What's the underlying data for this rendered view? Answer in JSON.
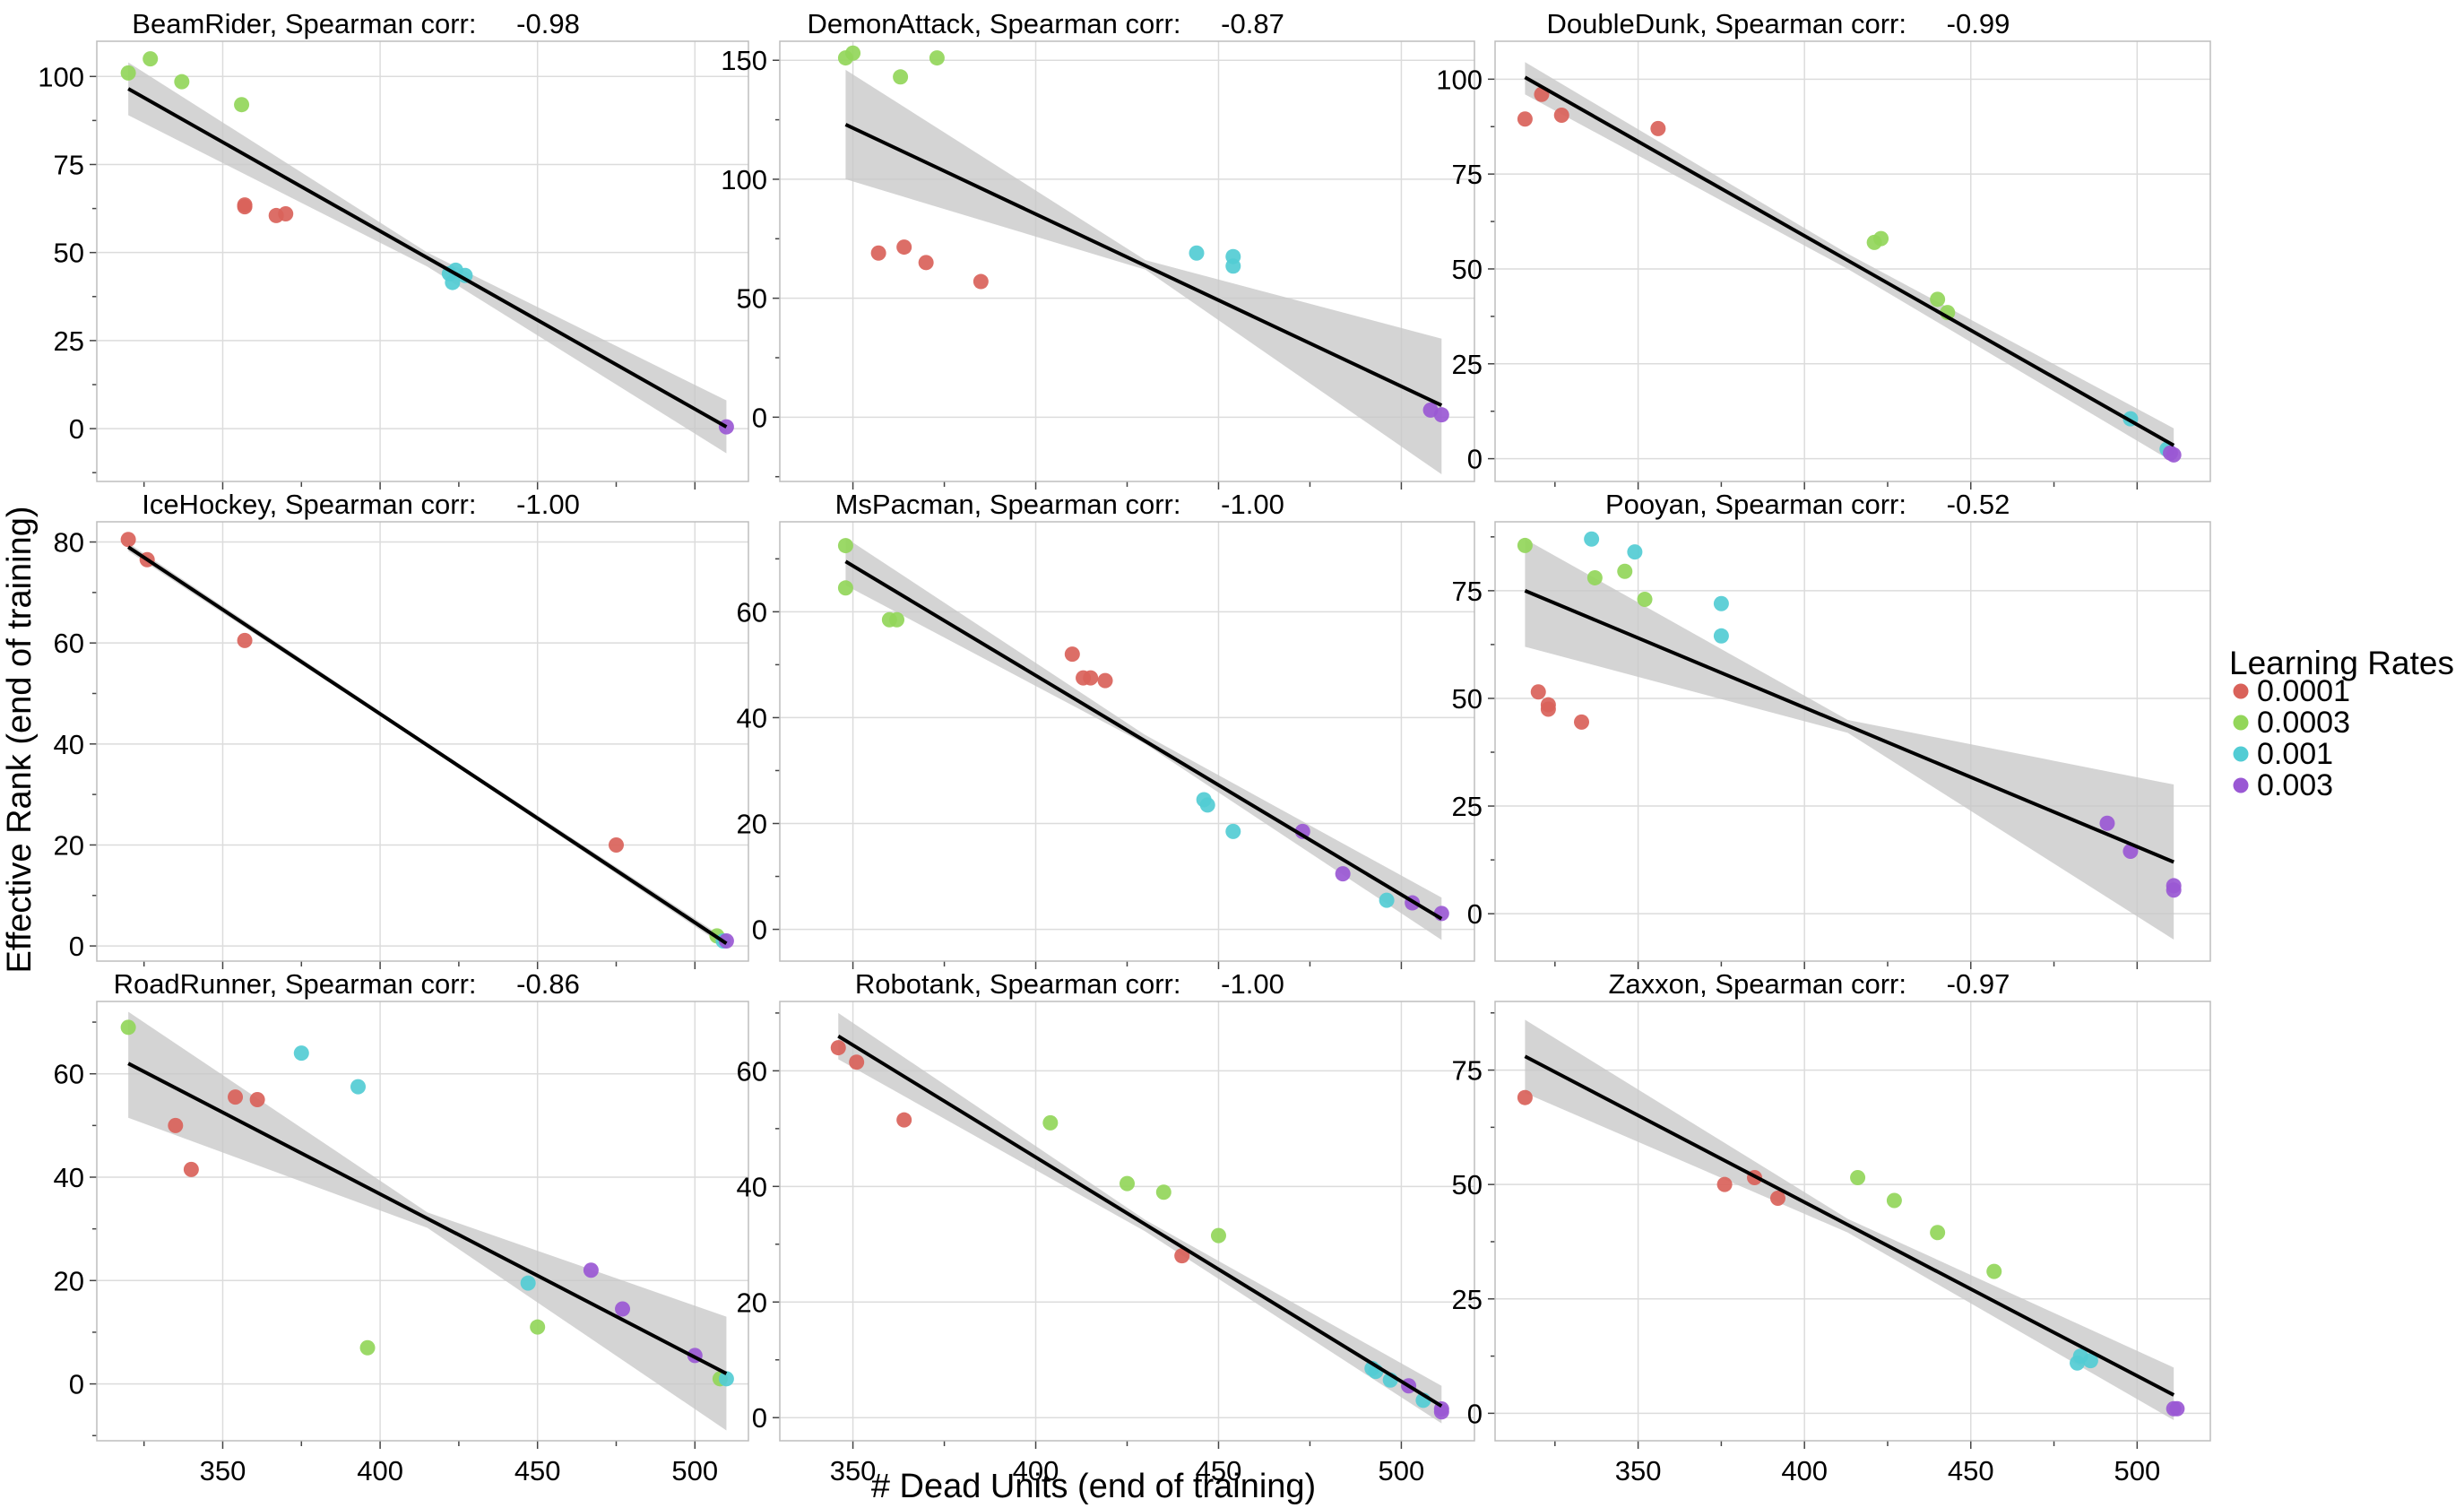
{
  "figure": {
    "ylabel": "Effective Rank (end of training)",
    "xlabel": "# Dead Units (end of training)",
    "legend_title": "Learning Rates"
  },
  "chart_data": {
    "type": "scatter",
    "legend": [
      {
        "label": "0.0001",
        "color": "#d9625a"
      },
      {
        "label": "0.0003",
        "color": "#93d65a"
      },
      {
        "label": "0.001",
        "color": "#52ccd4"
      },
      {
        "label": "0.003",
        "color": "#9a58d4"
      }
    ],
    "shared_x_ticks": [
      "350",
      "400",
      "450",
      "500"
    ],
    "panels": [
      {
        "game": "BeamRider",
        "corr": "-0.98",
        "xlim": [
          310,
          517
        ],
        "ylim": [
          -15,
          110
        ],
        "yticks": [
          "0",
          "25",
          "50",
          "75",
          "100"
        ],
        "show_x_ticks": false,
        "fit": [
          [
            320,
            96.5
          ],
          [
            510,
            0.5
          ]
        ],
        "band": [
          [
            320,
            104,
            89
          ],
          [
            415,
            50,
            46
          ],
          [
            510,
            8,
            -7
          ]
        ],
        "points": [
          {
            "lr": "0.0003",
            "x": 320,
            "y": 101
          },
          {
            "lr": "0.0003",
            "x": 327,
            "y": 105
          },
          {
            "lr": "0.0003",
            "x": 337,
            "y": 98.5
          },
          {
            "lr": "0.0003",
            "x": 356,
            "y": 92
          },
          {
            "lr": "0.0001",
            "x": 357,
            "y": 63.5
          },
          {
            "lr": "0.0001",
            "x": 357,
            "y": 63
          },
          {
            "lr": "0.0001",
            "x": 367,
            "y": 60.5
          },
          {
            "lr": "0.0001",
            "x": 370,
            "y": 61
          },
          {
            "lr": "0.001",
            "x": 422,
            "y": 44
          },
          {
            "lr": "0.001",
            "x": 423,
            "y": 41.5
          },
          {
            "lr": "0.001",
            "x": 424,
            "y": 45
          },
          {
            "lr": "0.001",
            "x": 427,
            "y": 43.5
          },
          {
            "lr": "0.003",
            "x": 510,
            "y": 0.5
          }
        ]
      },
      {
        "game": "DemonAttack",
        "corr": "-0.87",
        "xlim": [
          330,
          520
        ],
        "ylim": [
          -27,
          158
        ],
        "yticks": [
          "0",
          "50",
          "100",
          "150"
        ],
        "show_x_ticks": false,
        "fit": [
          [
            348,
            123
          ],
          [
            511,
            5
          ]
        ],
        "band": [
          [
            348,
            146,
            100
          ],
          [
            430,
            66,
            62
          ],
          [
            511,
            33,
            -24
          ]
        ],
        "points": [
          {
            "lr": "0.0003",
            "x": 348,
            "y": 151
          },
          {
            "lr": "0.0003",
            "x": 350,
            "y": 153
          },
          {
            "lr": "0.0003",
            "x": 363,
            "y": 143
          },
          {
            "lr": "0.0003",
            "x": 373,
            "y": 151
          },
          {
            "lr": "0.0001",
            "x": 357,
            "y": 69
          },
          {
            "lr": "0.0001",
            "x": 364,
            "y": 71.5
          },
          {
            "lr": "0.0001",
            "x": 370,
            "y": 65
          },
          {
            "lr": "0.0001",
            "x": 385,
            "y": 57
          },
          {
            "lr": "0.001",
            "x": 444,
            "y": 69
          },
          {
            "lr": "0.001",
            "x": 454,
            "y": 67.5
          },
          {
            "lr": "0.001",
            "x": 454,
            "y": 63.5
          },
          {
            "lr": "0.003",
            "x": 508,
            "y": 3
          },
          {
            "lr": "0.003",
            "x": 511,
            "y": 1
          }
        ]
      },
      {
        "game": "DoubleDunk",
        "corr": "-0.99",
        "xlim": [
          307,
          522
        ],
        "ylim": [
          -6,
          110
        ],
        "yticks": [
          "0",
          "25",
          "50",
          "75",
          "100"
        ],
        "show_x_ticks": false,
        "fit": [
          [
            316,
            100.5
          ],
          [
            511,
            3.5
          ]
        ],
        "band": [
          [
            316,
            104.5,
            96
          ],
          [
            413,
            54,
            50
          ],
          [
            511,
            8,
            -1
          ]
        ],
        "points": [
          {
            "lr": "0.0001",
            "x": 316,
            "y": 89.5
          },
          {
            "lr": "0.0001",
            "x": 321,
            "y": 96
          },
          {
            "lr": "0.0001",
            "x": 327,
            "y": 90.5
          },
          {
            "lr": "0.0001",
            "x": 356,
            "y": 87
          },
          {
            "lr": "0.0003",
            "x": 421,
            "y": 57
          },
          {
            "lr": "0.0003",
            "x": 423,
            "y": 58
          },
          {
            "lr": "0.0003",
            "x": 440,
            "y": 42
          },
          {
            "lr": "0.0003",
            "x": 443,
            "y": 38.5
          },
          {
            "lr": "0.001",
            "x": 498,
            "y": 10.5
          },
          {
            "lr": "0.001",
            "x": 509,
            "y": 2.5
          },
          {
            "lr": "0.003",
            "x": 510,
            "y": 1.5
          },
          {
            "lr": "0.003",
            "x": 511,
            "y": 1
          }
        ]
      },
      {
        "game": "IceHockey",
        "corr": "-1.00",
        "xlim": [
          310,
          517
        ],
        "ylim": [
          -3,
          84
        ],
        "yticks": [
          "0",
          "20",
          "40",
          "60",
          "80"
        ],
        "show_x_ticks": false,
        "fit": [
          [
            320,
            79
          ],
          [
            510,
            0.5
          ]
        ],
        "band": [
          [
            320,
            79.8,
            78.2
          ],
          [
            415,
            40.2,
            39.4
          ],
          [
            510,
            1.3,
            -0.3
          ]
        ],
        "points": [
          {
            "lr": "0.0001",
            "x": 320,
            "y": 80.5
          },
          {
            "lr": "0.0001",
            "x": 326,
            "y": 76.5
          },
          {
            "lr": "0.0001",
            "x": 357,
            "y": 60.5
          },
          {
            "lr": "0.0001",
            "x": 475,
            "y": 20
          },
          {
            "lr": "0.0003",
            "x": 507,
            "y": 2
          },
          {
            "lr": "0.001",
            "x": 509,
            "y": 1
          },
          {
            "lr": "0.003",
            "x": 510,
            "y": 1
          }
        ]
      },
      {
        "game": "MsPacman",
        "corr": "-1.00",
        "xlim": [
          330,
          520
        ],
        "ylim": [
          -6,
          77
        ],
        "yticks": [
          "0",
          "20",
          "40",
          "60"
        ],
        "show_x_ticks": false,
        "fit": [
          [
            348,
            69.5
          ],
          [
            511,
            2
          ]
        ],
        "band": [
          [
            348,
            74,
            65
          ],
          [
            430,
            36.7,
            35
          ],
          [
            511,
            6,
            -2
          ]
        ],
        "points": [
          {
            "lr": "0.0003",
            "x": 348,
            "y": 72.5
          },
          {
            "lr": "0.0003",
            "x": 348,
            "y": 64.5
          },
          {
            "lr": "0.0003",
            "x": 360,
            "y": 58.5
          },
          {
            "lr": "0.0003",
            "x": 362,
            "y": 58.5
          },
          {
            "lr": "0.0001",
            "x": 410,
            "y": 52
          },
          {
            "lr": "0.0001",
            "x": 413,
            "y": 47.5
          },
          {
            "lr": "0.0001",
            "x": 415,
            "y": 47.5
          },
          {
            "lr": "0.0001",
            "x": 419,
            "y": 47
          },
          {
            "lr": "0.001",
            "x": 446,
            "y": 24.5
          },
          {
            "lr": "0.001",
            "x": 447,
            "y": 23.5
          },
          {
            "lr": "0.001",
            "x": 454,
            "y": 18.5
          },
          {
            "lr": "0.001",
            "x": 496,
            "y": 5.5
          },
          {
            "lr": "0.003",
            "x": 473,
            "y": 18.5
          },
          {
            "lr": "0.003",
            "x": 484,
            "y": 10.5
          },
          {
            "lr": "0.003",
            "x": 503,
            "y": 5
          },
          {
            "lr": "0.003",
            "x": 511,
            "y": 3
          }
        ]
      },
      {
        "game": "Pooyan",
        "corr": "-0.52",
        "xlim": [
          307,
          522
        ],
        "ylim": [
          -11,
          91
        ],
        "yticks": [
          "0",
          "25",
          "50",
          "75"
        ],
        "show_x_ticks": false,
        "fit": [
          [
            316,
            75
          ],
          [
            511,
            12
          ]
        ],
        "band": [
          [
            316,
            87,
            62
          ],
          [
            413,
            45,
            42
          ],
          [
            511,
            30,
            -6
          ]
        ],
        "points": [
          {
            "lr": "0.0003",
            "x": 316,
            "y": 85.5
          },
          {
            "lr": "0.0003",
            "x": 337,
            "y": 78
          },
          {
            "lr": "0.0003",
            "x": 346,
            "y": 79.5
          },
          {
            "lr": "0.0003",
            "x": 352,
            "y": 73
          },
          {
            "lr": "0.0001",
            "x": 320,
            "y": 51.5
          },
          {
            "lr": "0.0001",
            "x": 323,
            "y": 48.5
          },
          {
            "lr": "0.0001",
            "x": 323,
            "y": 47.5
          },
          {
            "lr": "0.0001",
            "x": 333,
            "y": 44.5
          },
          {
            "lr": "0.001",
            "x": 336,
            "y": 87
          },
          {
            "lr": "0.001",
            "x": 349,
            "y": 84
          },
          {
            "lr": "0.001",
            "x": 375,
            "y": 72
          },
          {
            "lr": "0.001",
            "x": 375,
            "y": 64.5
          },
          {
            "lr": "0.003",
            "x": 491,
            "y": 21
          },
          {
            "lr": "0.003",
            "x": 498,
            "y": 14.5
          },
          {
            "lr": "0.003",
            "x": 511,
            "y": 6.5
          },
          {
            "lr": "0.003",
            "x": 511,
            "y": 5.5
          }
        ]
      },
      {
        "game": "RoadRunner",
        "corr": "-0.86",
        "xlim": [
          310,
          517
        ],
        "ylim": [
          -11,
          74
        ],
        "yticks": [
          "0",
          "20",
          "40",
          "60"
        ],
        "show_x_ticks": true,
        "fit": [
          [
            320,
            62
          ],
          [
            510,
            2
          ]
        ],
        "band": [
          [
            320,
            72,
            51.5
          ],
          [
            415,
            33.2,
            30.2
          ],
          [
            510,
            13,
            -9
          ]
        ],
        "points": [
          {
            "lr": "0.0003",
            "x": 320,
            "y": 69
          },
          {
            "lr": "0.0003",
            "x": 396,
            "y": 7
          },
          {
            "lr": "0.0003",
            "x": 450,
            "y": 11
          },
          {
            "lr": "0.0003",
            "x": 508,
            "y": 1
          },
          {
            "lr": "0.0001",
            "x": 335,
            "y": 50
          },
          {
            "lr": "0.0001",
            "x": 340,
            "y": 41.5
          },
          {
            "lr": "0.0001",
            "x": 354,
            "y": 55.5
          },
          {
            "lr": "0.0001",
            "x": 361,
            "y": 55
          },
          {
            "lr": "0.001",
            "x": 375,
            "y": 64
          },
          {
            "lr": "0.001",
            "x": 393,
            "y": 57.5
          },
          {
            "lr": "0.001",
            "x": 447,
            "y": 19.5
          },
          {
            "lr": "0.001",
            "x": 510,
            "y": 1
          },
          {
            "lr": "0.003",
            "x": 467,
            "y": 22
          },
          {
            "lr": "0.003",
            "x": 477,
            "y": 14.5
          },
          {
            "lr": "0.003",
            "x": 500,
            "y": 5.5
          }
        ]
      },
      {
        "game": "Robotank",
        "corr": "-1.00",
        "xlim": [
          330,
          520
        ],
        "ylim": [
          -4,
          72
        ],
        "yticks": [
          "0",
          "20",
          "40",
          "60"
        ],
        "show_x_ticks": true,
        "fit": [
          [
            346,
            66
          ],
          [
            511,
            2
          ]
        ],
        "band": [
          [
            346,
            70,
            62
          ],
          [
            430,
            34.2,
            32.2
          ],
          [
            511,
            5.5,
            -1
          ]
        ],
        "points": [
          {
            "lr": "0.0001",
            "x": 346,
            "y": 64
          },
          {
            "lr": "0.0001",
            "x": 351,
            "y": 61.5
          },
          {
            "lr": "0.0001",
            "x": 364,
            "y": 51.5
          },
          {
            "lr": "0.0001",
            "x": 440,
            "y": 28
          },
          {
            "lr": "0.0003",
            "x": 404,
            "y": 51
          },
          {
            "lr": "0.0003",
            "x": 425,
            "y": 40.5
          },
          {
            "lr": "0.0003",
            "x": 435,
            "y": 39
          },
          {
            "lr": "0.0003",
            "x": 450,
            "y": 31.5
          },
          {
            "lr": "0.001",
            "x": 492,
            "y": 8.5
          },
          {
            "lr": "0.001",
            "x": 493,
            "y": 8
          },
          {
            "lr": "0.001",
            "x": 497,
            "y": 6.5
          },
          {
            "lr": "0.001",
            "x": 506,
            "y": 3
          },
          {
            "lr": "0.003",
            "x": 502,
            "y": 5.5
          },
          {
            "lr": "0.003",
            "x": 511,
            "y": 1.5
          },
          {
            "lr": "0.003",
            "x": 511,
            "y": 1
          }
        ]
      },
      {
        "game": "Zaxxon",
        "corr": "-0.97",
        "xlim": [
          307,
          522
        ],
        "ylim": [
          -6,
          90
        ],
        "yticks": [
          "0",
          "25",
          "50",
          "75"
        ],
        "show_x_ticks": true,
        "fit": [
          [
            316,
            78
          ],
          [
            511,
            4
          ]
        ],
        "band": [
          [
            316,
            86,
            70
          ],
          [
            413,
            42.5,
            39.5
          ],
          [
            511,
            10,
            -1.5
          ]
        ],
        "points": [
          {
            "lr": "0.0001",
            "x": 316,
            "y": 69
          },
          {
            "lr": "0.0001",
            "x": 376,
            "y": 50
          },
          {
            "lr": "0.0001",
            "x": 385,
            "y": 51.5
          },
          {
            "lr": "0.0001",
            "x": 392,
            "y": 47
          },
          {
            "lr": "0.0003",
            "x": 416,
            "y": 51.5
          },
          {
            "lr": "0.0003",
            "x": 427,
            "y": 46.5
          },
          {
            "lr": "0.0003",
            "x": 440,
            "y": 39.5
          },
          {
            "lr": "0.0003",
            "x": 457,
            "y": 31
          },
          {
            "lr": "0.001",
            "x": 482,
            "y": 11
          },
          {
            "lr": "0.001",
            "x": 483,
            "y": 12.5
          },
          {
            "lr": "0.001",
            "x": 486,
            "y": 11.5
          },
          {
            "lr": "0.003",
            "x": 511,
            "y": 1
          },
          {
            "lr": "0.003",
            "x": 512,
            "y": 1
          }
        ]
      }
    ]
  }
}
